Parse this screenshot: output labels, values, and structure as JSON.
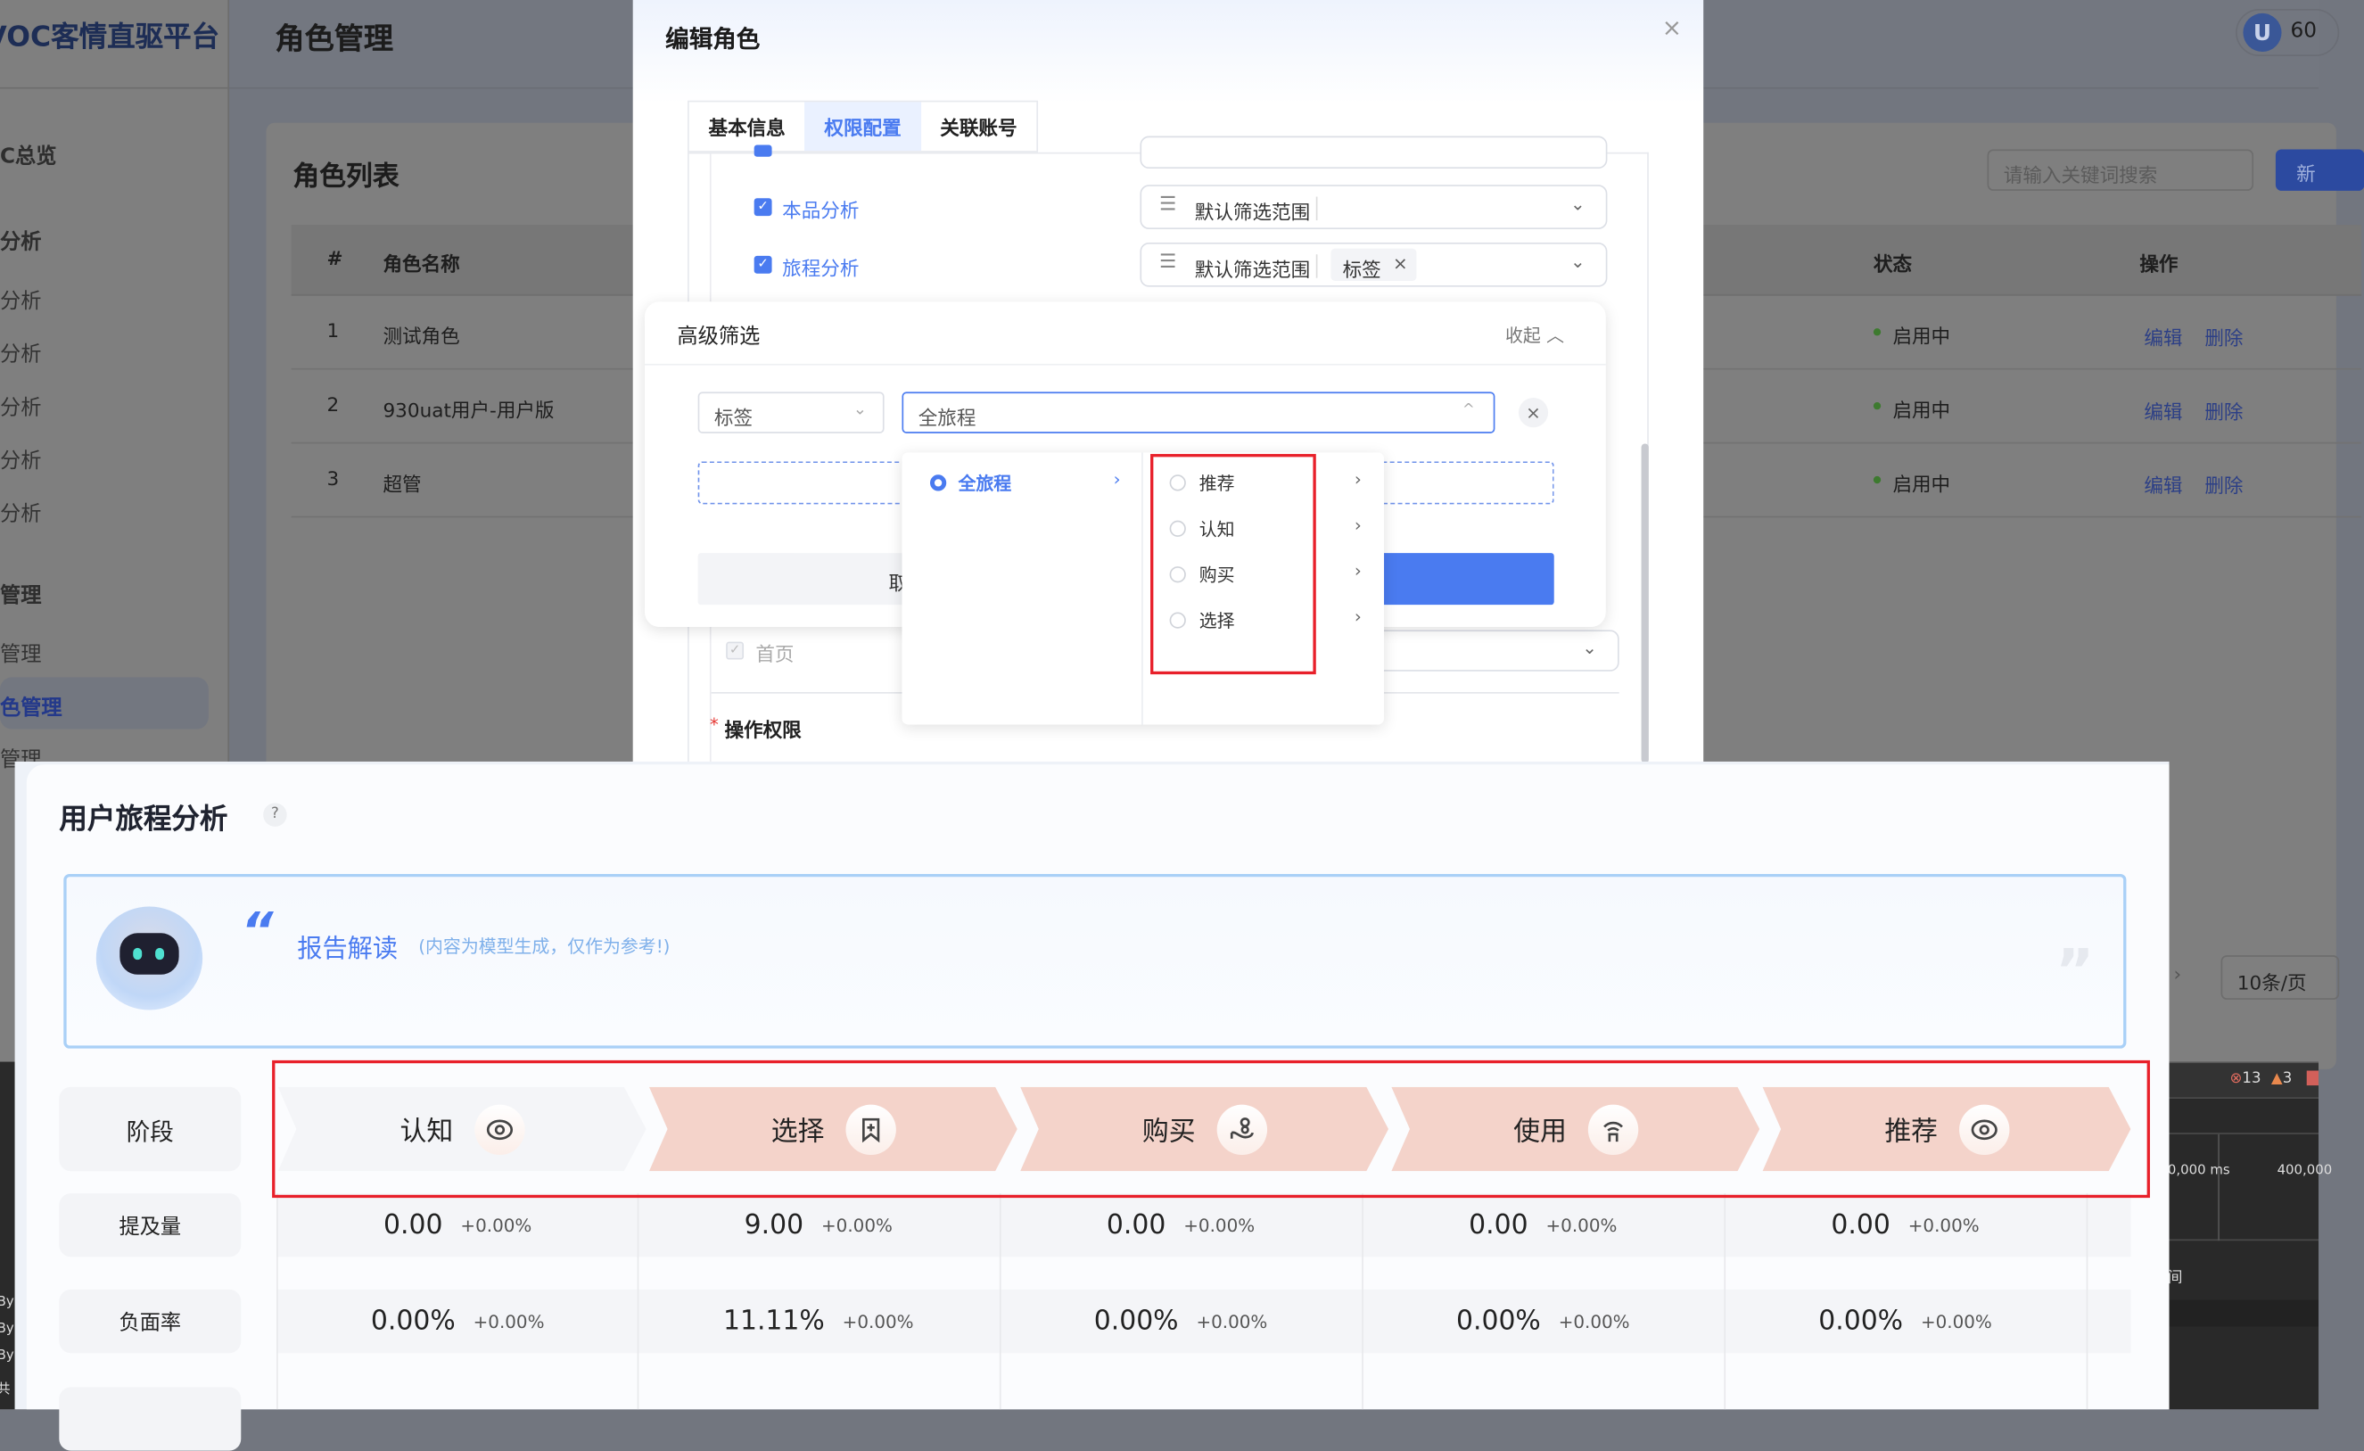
{
  "app": {
    "logo": "VOC客情直驱平台",
    "page_title": "角色管理",
    "user_avatar": "U",
    "user_name_partial": "60"
  },
  "sidebar": {
    "items": [
      {
        "label": "C总览",
        "type": "group"
      },
      {
        "label": "分析",
        "type": "group"
      },
      {
        "label": "分析",
        "type": "item"
      },
      {
        "label": "分析",
        "type": "item"
      },
      {
        "label": "分析",
        "type": "item"
      },
      {
        "label": "分析",
        "type": "item"
      },
      {
        "label": "分析",
        "type": "item"
      },
      {
        "label": "管理",
        "type": "group"
      },
      {
        "label": "管理",
        "type": "item"
      },
      {
        "label": "色管理",
        "type": "item",
        "active": true
      },
      {
        "label": "管理",
        "type": "item"
      }
    ]
  },
  "role_list": {
    "title": "角色列表",
    "search_placeholder": "请输入关键词搜索",
    "new_button": "新",
    "columns": [
      "#",
      "角色名称",
      "状态",
      "操作"
    ],
    "rows": [
      {
        "index": "1",
        "name": "测试角色",
        "status": "启用中",
        "edit": "编辑",
        "delete": "删除"
      },
      {
        "index": "2",
        "name": "930uat用户-用户版",
        "status": "启用中",
        "edit": "编辑",
        "delete": "删除"
      },
      {
        "index": "3",
        "name": "超管",
        "status": "启用中",
        "edit": "编辑",
        "delete": "删除"
      }
    ],
    "page_size": "10条/页"
  },
  "modal": {
    "title": "编辑角色",
    "tabs": [
      "基本信息",
      "权限配置",
      "关联账号"
    ],
    "active_tab": 1,
    "permissions": [
      {
        "label": "本品分析",
        "checked": true,
        "scope_label": "默认筛选范围",
        "tags": []
      },
      {
        "label": "旅程分析",
        "checked": true,
        "scope_label": "默认筛选范围",
        "tags": [
          "标签"
        ]
      },
      {
        "label": "首页",
        "checked": true,
        "disabled": true
      }
    ],
    "operation_permission_label": "操作权限"
  },
  "advanced_filter": {
    "title": "高级筛选",
    "collapse": "收起",
    "field": "标签",
    "value": "全旅程",
    "cancel_partial": "取",
    "cascader": {
      "level1": [
        {
          "label": "全旅程",
          "selected": true
        }
      ],
      "level2": [
        "推荐",
        "认知",
        "购买",
        "选择"
      ]
    }
  },
  "devtools": {
    "errors": "13",
    "warnings": "3",
    "time_a": "0,000 ms",
    "time_b": "400,000",
    "label": "间",
    "left_text": [
      "By",
      "By",
      "By",
      "共"
    ]
  },
  "journey": {
    "title": "用户旅程分析",
    "help": "?",
    "report": {
      "title": "报告解读",
      "note": "(内容为模型生成，仅作为参考!)"
    },
    "row_labels": [
      "阶段",
      "提及量",
      "负面率"
    ],
    "stages": [
      {
        "name": "认知",
        "icon": "eye-icon",
        "mentions": "0.00",
        "mentions_delta": "+0.00%",
        "negative": "0.00%",
        "negative_delta": "+0.00%",
        "color": "#f4f5f8"
      },
      {
        "name": "选择",
        "icon": "bookmark-plus-icon",
        "mentions": "9.00",
        "mentions_delta": "+0.00%",
        "negative": "11.11%",
        "negative_delta": "+0.00%",
        "color": "#f4d3ca"
      },
      {
        "name": "购买",
        "icon": "hand-coins-icon",
        "mentions": "0.00",
        "mentions_delta": "+0.00%",
        "negative": "0.00%",
        "negative_delta": "+0.00%",
        "color": "#f4d3ca"
      },
      {
        "name": "使用",
        "icon": "signal-door-icon",
        "mentions": "0.00",
        "mentions_delta": "+0.00%",
        "negative": "0.00%",
        "negative_delta": "+0.00%",
        "color": "#f4d3ca"
      },
      {
        "name": "推荐",
        "icon": "eye-icon",
        "mentions": "0.00",
        "mentions_delta": "+0.00%",
        "negative": "0.00%",
        "negative_delta": "+0.00%",
        "color": "#f4d3ca"
      }
    ]
  },
  "colors": {
    "primary": "#4a7bf0",
    "highlight_box": "#e8202a",
    "stage_pink": "#f4d3ca"
  }
}
